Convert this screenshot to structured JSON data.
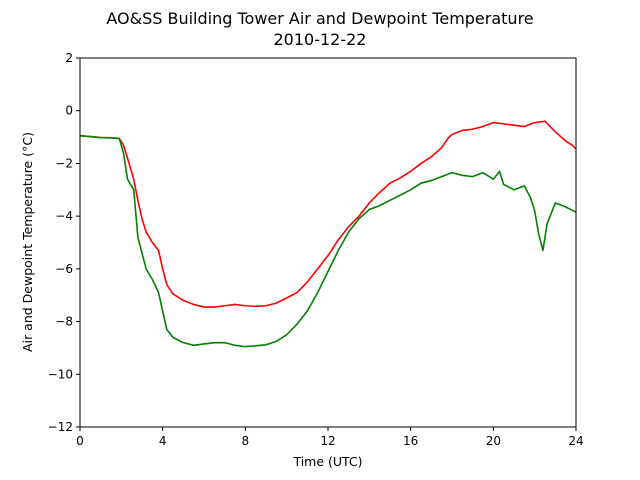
{
  "chart_data": {
    "type": "line",
    "title": "AO&SS Building Tower Air and Dewpoint Temperature",
    "subtitle": "2010-12-22",
    "xlabel": "Time (UTC)",
    "ylabel": "Air and Dewpoint Temperature (°C)",
    "xlim": [
      0,
      24
    ],
    "ylim": [
      -12,
      2
    ],
    "xticks": [
      0,
      4,
      8,
      12,
      16,
      20,
      24
    ],
    "yticks": [
      2,
      0,
      -2,
      -4,
      -6,
      -8,
      -10,
      -12
    ],
    "grid": false,
    "legend": "none",
    "series": [
      {
        "color": "#ff0000",
        "points": [
          [
            0,
            -0.95
          ],
          [
            0.5,
            -0.98
          ],
          [
            1.0,
            -1.02
          ],
          [
            1.5,
            -1.03
          ],
          [
            1.9,
            -1.05
          ],
          [
            2.1,
            -1.3
          ],
          [
            2.3,
            -1.8
          ],
          [
            2.6,
            -2.6
          ],
          [
            2.8,
            -3.4
          ],
          [
            3.0,
            -4.1
          ],
          [
            3.2,
            -4.6
          ],
          [
            3.5,
            -5.0
          ],
          [
            3.8,
            -5.3
          ],
          [
            4.0,
            -6.0
          ],
          [
            4.2,
            -6.6
          ],
          [
            4.5,
            -6.95
          ],
          [
            5.0,
            -7.2
          ],
          [
            5.5,
            -7.35
          ],
          [
            6.0,
            -7.45
          ],
          [
            6.5,
            -7.45
          ],
          [
            7.0,
            -7.4
          ],
          [
            7.5,
            -7.35
          ],
          [
            8.0,
            -7.4
          ],
          [
            8.5,
            -7.42
          ],
          [
            9.0,
            -7.4
          ],
          [
            9.5,
            -7.3
          ],
          [
            10.0,
            -7.1
          ],
          [
            10.5,
            -6.9
          ],
          [
            11.0,
            -6.5
          ],
          [
            11.5,
            -6.0
          ],
          [
            12.0,
            -5.5
          ],
          [
            12.5,
            -4.9
          ],
          [
            13.0,
            -4.4
          ],
          [
            13.5,
            -4.0
          ],
          [
            14.0,
            -3.5
          ],
          [
            14.5,
            -3.1
          ],
          [
            15.0,
            -2.75
          ],
          [
            15.5,
            -2.55
          ],
          [
            16.0,
            -2.3
          ],
          [
            16.5,
            -2.0
          ],
          [
            17.0,
            -1.75
          ],
          [
            17.5,
            -1.4
          ],
          [
            17.8,
            -1.05
          ],
          [
            18.0,
            -0.9
          ],
          [
            18.5,
            -0.75
          ],
          [
            19.0,
            -0.7
          ],
          [
            19.5,
            -0.6
          ],
          [
            20.0,
            -0.45
          ],
          [
            20.5,
            -0.5
          ],
          [
            21.0,
            -0.55
          ],
          [
            21.5,
            -0.6
          ],
          [
            22.0,
            -0.45
          ],
          [
            22.5,
            -0.4
          ],
          [
            23.0,
            -0.8
          ],
          [
            23.5,
            -1.15
          ],
          [
            23.8,
            -1.3
          ],
          [
            24.0,
            -1.45
          ]
        ]
      },
      {
        "color": "#008000",
        "points": [
          [
            0,
            -0.95
          ],
          [
            0.5,
            -0.98
          ],
          [
            1.0,
            -1.02
          ],
          [
            1.5,
            -1.03
          ],
          [
            1.9,
            -1.05
          ],
          [
            2.1,
            -1.6
          ],
          [
            2.3,
            -2.6
          ],
          [
            2.6,
            -3.0
          ],
          [
            2.8,
            -4.8
          ],
          [
            3.0,
            -5.4
          ],
          [
            3.2,
            -6.0
          ],
          [
            3.5,
            -6.4
          ],
          [
            3.8,
            -6.9
          ],
          [
            4.0,
            -7.6
          ],
          [
            4.2,
            -8.3
          ],
          [
            4.5,
            -8.6
          ],
          [
            5.0,
            -8.8
          ],
          [
            5.5,
            -8.9
          ],
          [
            6.0,
            -8.85
          ],
          [
            6.5,
            -8.8
          ],
          [
            7.0,
            -8.8
          ],
          [
            7.5,
            -8.9
          ],
          [
            8.0,
            -8.95
          ],
          [
            8.5,
            -8.92
          ],
          [
            9.0,
            -8.88
          ],
          [
            9.5,
            -8.75
          ],
          [
            10.0,
            -8.5
          ],
          [
            10.5,
            -8.1
          ],
          [
            11.0,
            -7.6
          ],
          [
            11.5,
            -6.9
          ],
          [
            12.0,
            -6.1
          ],
          [
            12.5,
            -5.3
          ],
          [
            13.0,
            -4.6
          ],
          [
            13.5,
            -4.1
          ],
          [
            14.0,
            -3.75
          ],
          [
            14.5,
            -3.6
          ],
          [
            15.0,
            -3.4
          ],
          [
            15.5,
            -3.2
          ],
          [
            16.0,
            -3.0
          ],
          [
            16.5,
            -2.75
          ],
          [
            17.0,
            -2.65
          ],
          [
            17.5,
            -2.5
          ],
          [
            18.0,
            -2.35
          ],
          [
            18.5,
            -2.45
          ],
          [
            19.0,
            -2.5
          ],
          [
            19.5,
            -2.35
          ],
          [
            20.0,
            -2.6
          ],
          [
            20.3,
            -2.3
          ],
          [
            20.5,
            -2.8
          ],
          [
            21.0,
            -3.0
          ],
          [
            21.5,
            -2.85
          ],
          [
            21.8,
            -3.3
          ],
          [
            22.0,
            -3.8
          ],
          [
            22.2,
            -4.7
          ],
          [
            22.4,
            -5.3
          ],
          [
            22.6,
            -4.3
          ],
          [
            23.0,
            -3.5
          ],
          [
            23.5,
            -3.65
          ],
          [
            24.0,
            -3.85
          ]
        ]
      }
    ]
  }
}
